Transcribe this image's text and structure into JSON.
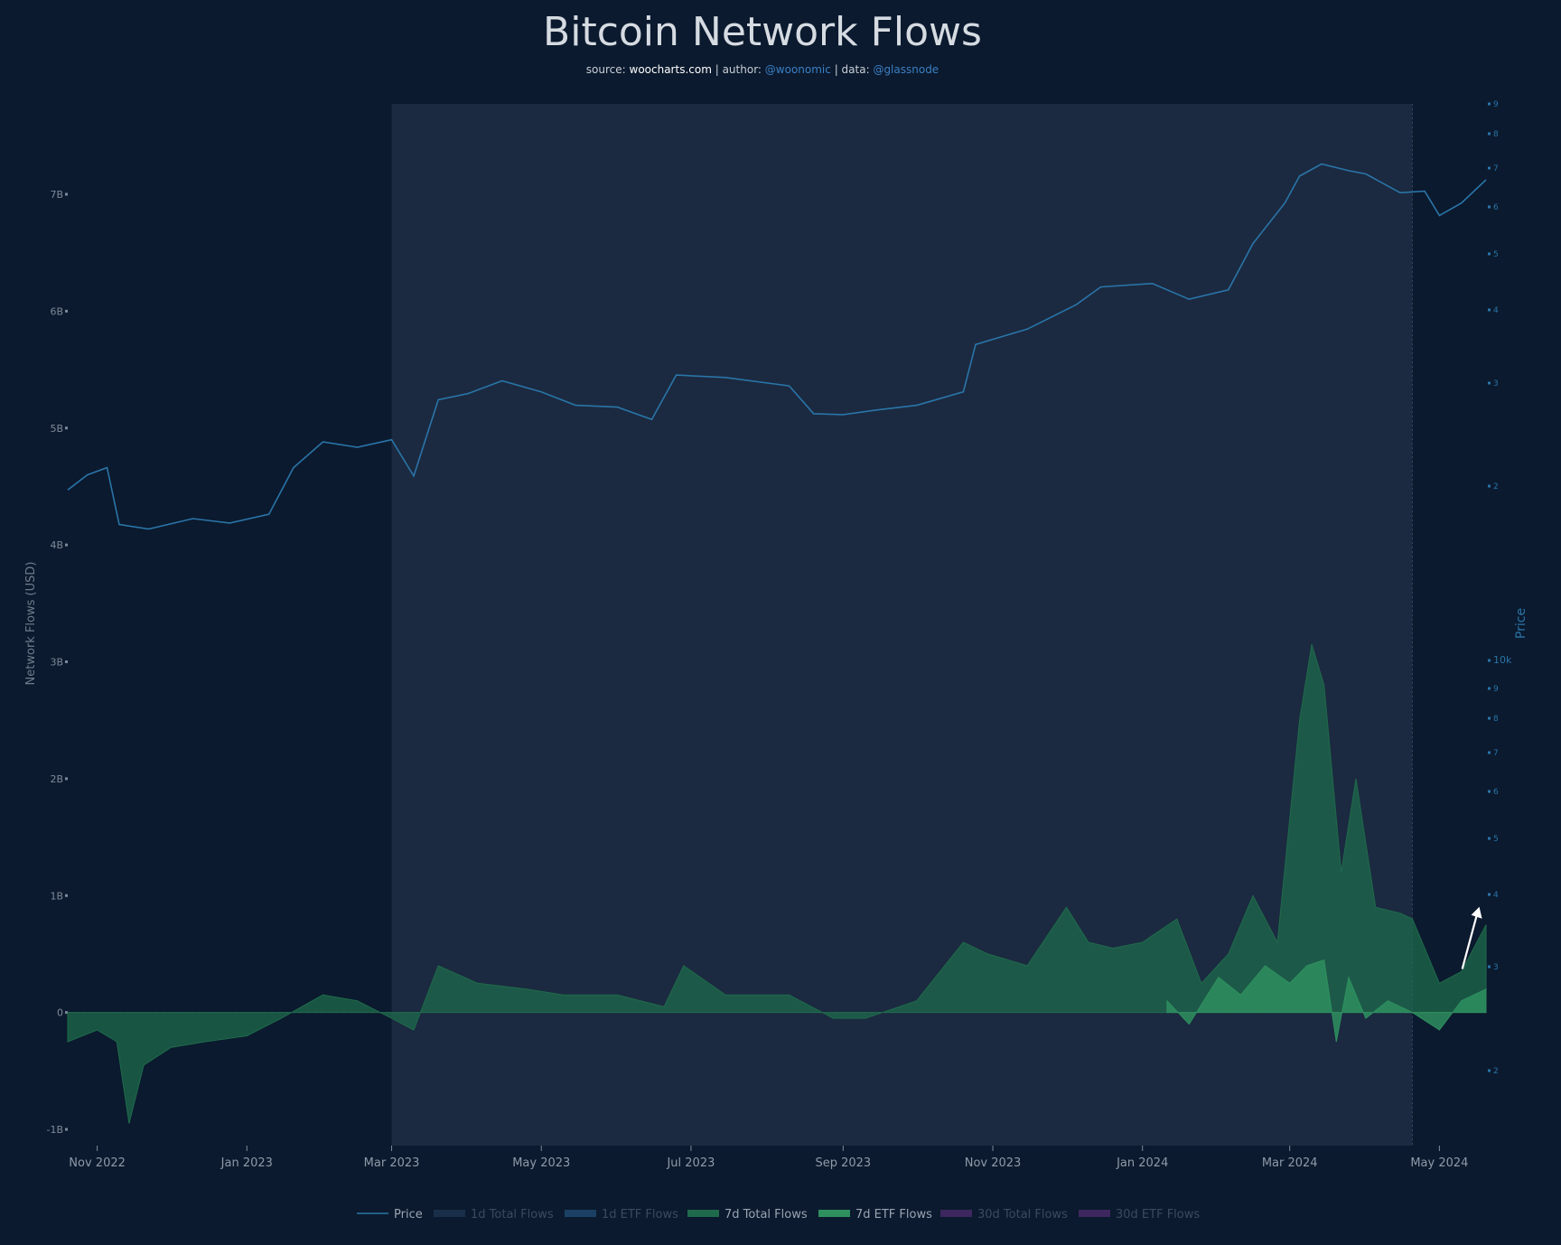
{
  "title": "Bitcoin Network Flows",
  "subtitle": {
    "source_label": "source: ",
    "source_value": "woocharts.com",
    "author_label": " | author: ",
    "author_value": "@woonomic",
    "data_label": " | data: ",
    "data_value": "@glassnode"
  },
  "colors": {
    "background": "#0b1a2e",
    "highlight_band": "#1b2a40",
    "price_line": "#2a74a8",
    "flows_7d_total": "#1f6a4b",
    "flows_7d_etf": "#2e8f5f",
    "axis_text": "#7f8a99",
    "right_axis_text": "#2a74a8",
    "title_text": "#d6dbe2",
    "subtitle_link": "#3b7fc4",
    "arrow": "#ffffff"
  },
  "chart_data": {
    "type": "area",
    "title": "Bitcoin Network Flows",
    "y_left": {
      "label": "Network Flows (USD)",
      "range": [
        -1.0,
        7.0
      ],
      "ticks": [
        {
          "value": 7,
          "label": "7B"
        },
        {
          "value": 6,
          "label": "6B"
        },
        {
          "value": 5,
          "label": "5B"
        },
        {
          "value": 4,
          "label": "4B"
        },
        {
          "value": 3,
          "label": "3B"
        },
        {
          "value": 2,
          "label": "2B"
        },
        {
          "value": 1,
          "label": "1B"
        },
        {
          "value": 0,
          "label": "0"
        },
        {
          "value": -1,
          "label": "-1B"
        }
      ]
    },
    "y_right": {
      "label": "Price",
      "scale": "log",
      "ticks_upper": [
        "9",
        "8",
        "7",
        "6",
        "5",
        "4",
        "3",
        "2"
      ],
      "ticks_lower": [
        "10k",
        "9",
        "8",
        "7",
        "6",
        "5",
        "4",
        "3",
        "2"
      ]
    },
    "x_axis": {
      "ticks": [
        "Nov 2022",
        "Jan 2023",
        "Mar 2023",
        "May 2023",
        "Jul 2023",
        "Sep 2023",
        "Nov 2023",
        "Jan 2024",
        "Mar 2024",
        "May 2024"
      ],
      "range": [
        "2022-10-20",
        "2024-05-20"
      ]
    },
    "highlight_range": [
      "2023-03-01",
      "2024-04-20"
    ],
    "legend": {
      "placement": "bottom",
      "items": [
        {
          "label": "Price",
          "kind": "line",
          "color": "#2a74a8",
          "active": true
        },
        {
          "label": "1d Total Flows",
          "kind": "area",
          "color": "#1d3450",
          "active": false
        },
        {
          "label": "1d ETF Flows",
          "kind": "area",
          "color": "#1f4a72",
          "active": false
        },
        {
          "label": "7d Total Flows",
          "kind": "area",
          "color": "#1f6a4b",
          "active": true
        },
        {
          "label": "7d ETF Flows",
          "kind": "area",
          "color": "#2e8f5f",
          "active": true
        },
        {
          "label": "30d Total Flows",
          "kind": "area",
          "color": "#4a2a6a",
          "active": false
        },
        {
          "label": "30d ETF Flows",
          "kind": "area",
          "color": "#4a2a6a",
          "active": false
        }
      ]
    },
    "series": [
      {
        "name": "Price",
        "x": [
          "2022-10-20",
          "2022-10-28",
          "2022-11-05",
          "2022-11-10",
          "2022-11-22",
          "2022-12-10",
          "2022-12-25",
          "2023-01-10",
          "2023-01-20",
          "2023-02-01",
          "2023-02-15",
          "2023-03-01",
          "2023-03-10",
          "2023-03-20",
          "2023-04-01",
          "2023-04-15",
          "2023-05-01",
          "2023-05-15",
          "2023-06-01",
          "2023-06-15",
          "2023-06-25",
          "2023-07-15",
          "2023-08-10",
          "2023-08-20",
          "2023-09-01",
          "2023-09-15",
          "2023-10-01",
          "2023-10-20",
          "2023-10-25",
          "2023-11-15",
          "2023-12-05",
          "2023-12-15",
          "2024-01-05",
          "2024-01-20",
          "2024-02-05",
          "2024-02-15",
          "2024-02-28",
          "2024-03-05",
          "2024-03-14",
          "2024-03-25",
          "2024-04-01",
          "2024-04-15",
          "2024-04-25",
          "2024-05-01",
          "2024-05-10",
          "2024-05-20"
        ],
        "y": [
          19200,
          20400,
          21000,
          16700,
          16400,
          17100,
          16800,
          17400,
          21000,
          23300,
          22800,
          23500,
          20300,
          27600,
          28300,
          29800,
          28500,
          27000,
          26800,
          25500,
          30500,
          30200,
          29200,
          26100,
          26000,
          26500,
          27000,
          28500,
          34500,
          36700,
          40500,
          43500,
          44100,
          41400,
          43000,
          51800,
          61000,
          68000,
          71400,
          69500,
          68600,
          63600,
          64000,
          58000,
          61000,
          67000
        ]
      },
      {
        "name": "7d Total Flows",
        "x": [
          "2022-10-20",
          "2022-11-01",
          "2022-11-09",
          "2022-11-14",
          "2022-11-20",
          "2022-12-01",
          "2022-12-15",
          "2023-01-01",
          "2023-01-15",
          "2023-02-01",
          "2023-02-15",
          "2023-03-01",
          "2023-03-10",
          "2023-03-20",
          "2023-04-05",
          "2023-04-25",
          "2023-05-10",
          "2023-06-01",
          "2023-06-20",
          "2023-06-28",
          "2023-07-15",
          "2023-08-10",
          "2023-08-28",
          "2023-09-10",
          "2023-10-01",
          "2023-10-20",
          "2023-10-30",
          "2023-11-15",
          "2023-12-01",
          "2023-12-10",
          "2023-12-20",
          "2024-01-01",
          "2024-01-15",
          "2024-01-25",
          "2024-02-05",
          "2024-02-15",
          "2024-02-25",
          "2024-03-05",
          "2024-03-10",
          "2024-03-15",
          "2024-03-22",
          "2024-03-28",
          "2024-04-05",
          "2024-04-15",
          "2024-04-20",
          "2024-05-01",
          "2024-05-10",
          "2024-05-20"
        ],
        "y": [
          -0.25,
          -0.15,
          -0.25,
          -0.95,
          -0.45,
          -0.3,
          -0.25,
          -0.2,
          -0.05,
          0.15,
          0.1,
          -0.05,
          -0.15,
          0.4,
          0.25,
          0.2,
          0.15,
          0.15,
          0.05,
          0.4,
          0.15,
          0.15,
          -0.05,
          -0.05,
          0.1,
          0.6,
          0.5,
          0.4,
          0.9,
          0.6,
          0.55,
          0.6,
          0.8,
          0.25,
          0.5,
          1.0,
          0.6,
          2.5,
          3.15,
          2.8,
          1.2,
          2.0,
          0.9,
          0.85,
          0.8,
          0.25,
          0.35,
          0.75
        ]
      },
      {
        "name": "7d ETF Flows",
        "x": [
          "2024-01-11",
          "2024-01-20",
          "2024-02-01",
          "2024-02-10",
          "2024-02-20",
          "2024-03-01",
          "2024-03-08",
          "2024-03-15",
          "2024-03-20",
          "2024-03-25",
          "2024-04-01",
          "2024-04-10",
          "2024-04-20",
          "2024-05-01",
          "2024-05-10",
          "2024-05-20"
        ],
        "y": [
          0.1,
          -0.1,
          0.3,
          0.15,
          0.4,
          0.25,
          0.4,
          0.45,
          -0.25,
          0.3,
          -0.05,
          0.1,
          0.0,
          -0.15,
          0.1,
          0.2
        ]
      }
    ],
    "annotations": [
      {
        "type": "arrow",
        "x_start": "2024-05-14",
        "y_start": 0.45,
        "x_end": "2024-05-18",
        "y_end": 0.95,
        "color": "#ffffff"
      }
    ]
  }
}
